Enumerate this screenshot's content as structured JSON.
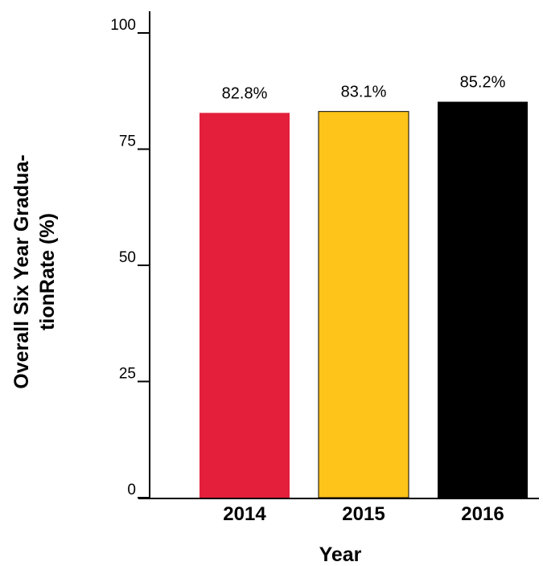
{
  "chart_data": {
    "type": "bar",
    "title": "",
    "xlabel": "Year",
    "ylabel_lines": [
      "Overall Six Year Gradua-",
      "tionRate (%)"
    ],
    "categories": [
      "2014",
      "2015",
      "2016"
    ],
    "values": [
      82.8,
      83.1,
      85.2
    ],
    "value_labels": [
      "82.8%",
      "83.1%",
      "85.2%"
    ],
    "colors": [
      "#e31f3b",
      "#ffc41a",
      "#000000"
    ],
    "ylim": [
      0,
      104
    ],
    "yticks": [
      0,
      25,
      50,
      75,
      100
    ],
    "ytick_labels": [
      "0",
      "25",
      "50",
      "75",
      "100"
    ],
    "grid": false,
    "legend": "none"
  }
}
